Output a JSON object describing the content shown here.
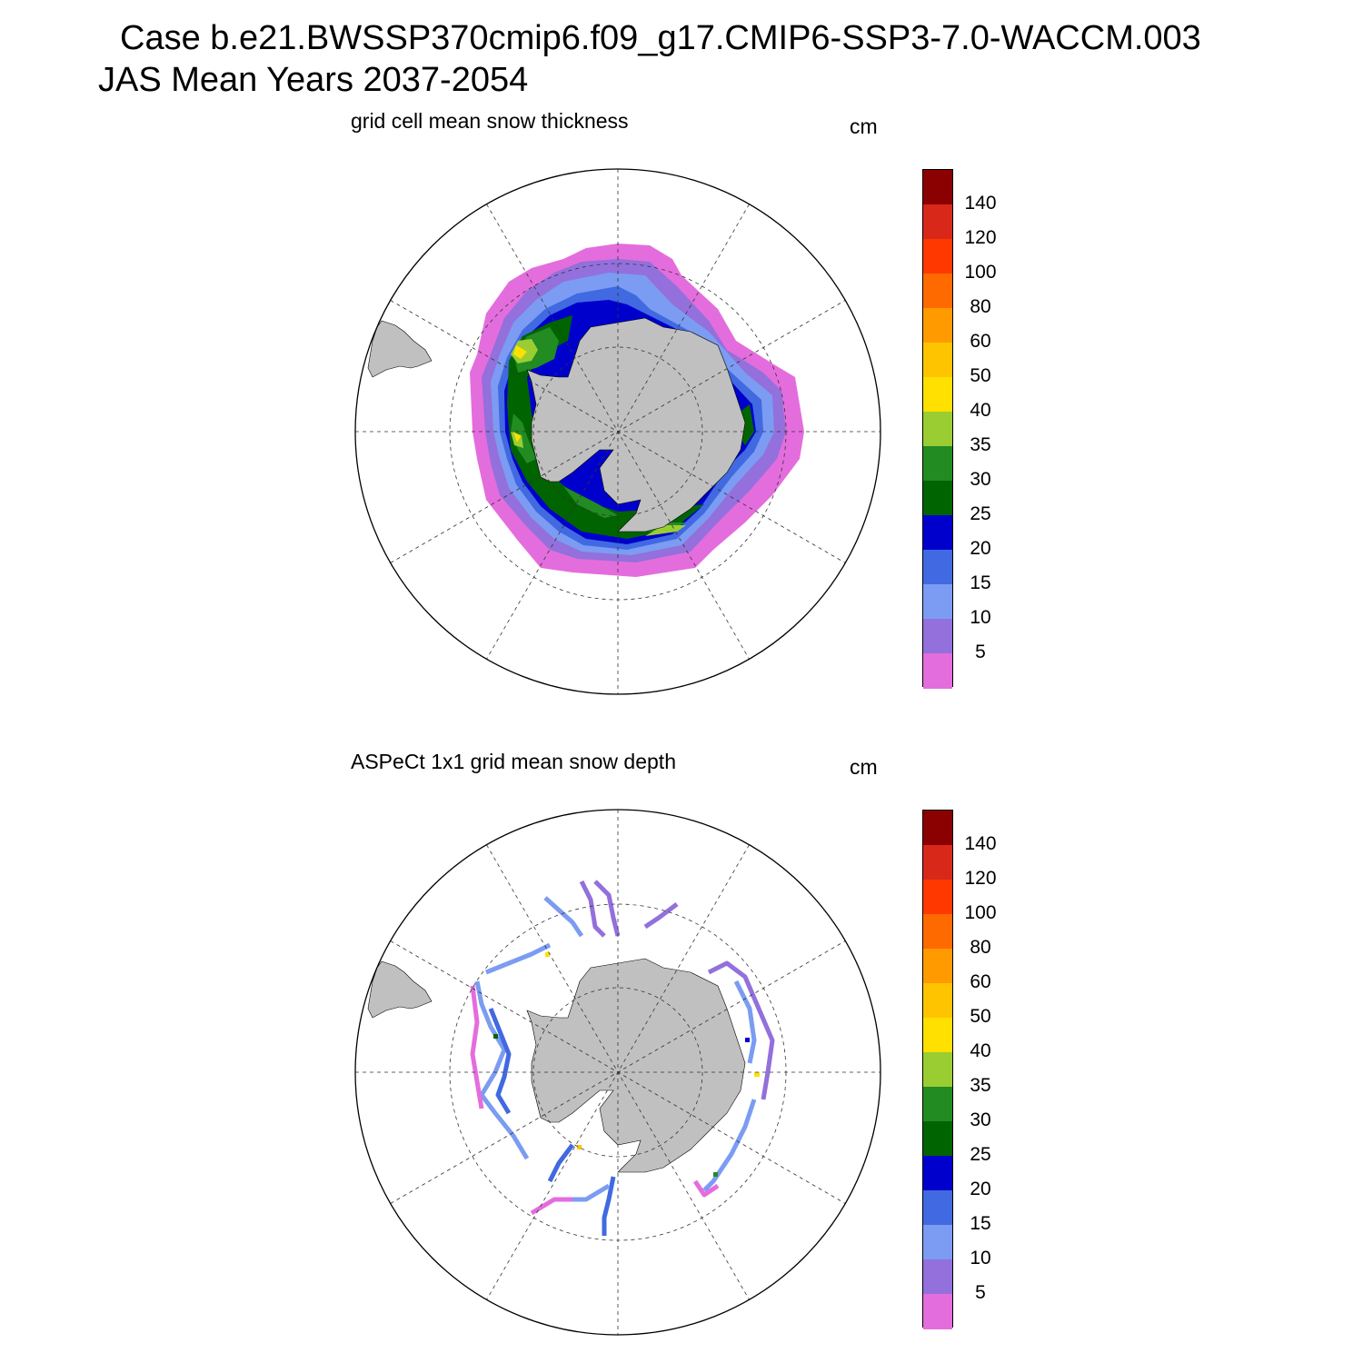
{
  "header": {
    "line1": "Case b.e21.BWSSP370cmip6.f09_g17.CMIP6-SSP3-7.0-WACCM.003",
    "line2": "JAS Mean   Years 2037-2054"
  },
  "colorbar": {
    "levels": [
      "5",
      "10",
      "15",
      "20",
      "25",
      "30",
      "35",
      "40",
      "50",
      "60",
      "80",
      "100",
      "120",
      "140"
    ],
    "colors": [
      "#e46ddd",
      "#9370db",
      "#7b9cf2",
      "#4169e1",
      "#0000cd",
      "#006400",
      "#228b22",
      "#9acd32",
      "#ffe000",
      "#ffc400",
      "#ff9b00",
      "#ff6a00",
      "#ff3800",
      "#d8281a",
      "#8b0000"
    ]
  },
  "panels": [
    {
      "title": "grid cell mean snow thickness",
      "units": "cm"
    },
    {
      "title": "ASPeCt 1x1 grid mean snow depth",
      "units": "cm"
    }
  ]
}
